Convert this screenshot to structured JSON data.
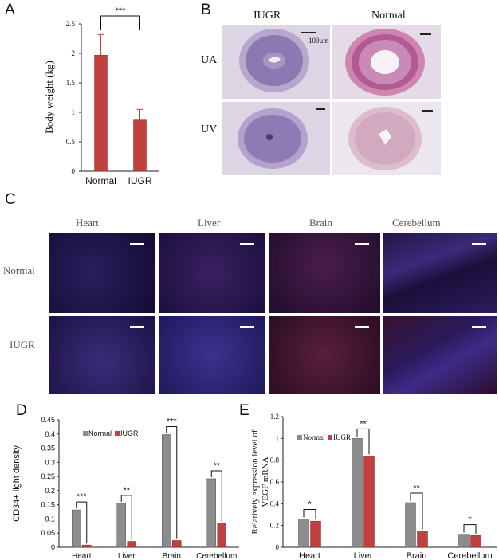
{
  "panel_labels": {
    "a": "A",
    "b": "B",
    "c": "C",
    "d": "D",
    "e": "E"
  },
  "panel_b": {
    "columns": [
      "IUGR",
      "Normal"
    ],
    "rows": [
      "UA",
      "UV"
    ],
    "scale_label": "100μm"
  },
  "panel_c": {
    "columns": [
      "Heart",
      "Liver",
      "Brain",
      "Cerebellum"
    ],
    "rows": [
      "Normal",
      "IUGR"
    ]
  },
  "colors": {
    "normal": "#8c8c8c",
    "iugr": "#c0413f",
    "fluo_bg": "#1a0f3a"
  },
  "chart_data": [
    {
      "type": "bar",
      "panel": "A",
      "categories": [
        "Normal",
        "IUGR"
      ],
      "values": [
        1.97,
        0.87
      ],
      "errors": [
        0.35,
        0.18
      ],
      "ylabel": "Body weight (kg)",
      "ylim": [
        0,
        2.5
      ],
      "yticks": [
        "0",
        "0.5",
        "1",
        "1.5",
        "2",
        "2.5"
      ],
      "significance": "***"
    },
    {
      "type": "bar",
      "panel": "D",
      "categories": [
        "Heart",
        "Liver",
        "Brain",
        "Cerebellum"
      ],
      "series": [
        {
          "name": "Normal",
          "values": [
            0.132,
            0.155,
            0.398,
            0.242
          ]
        },
        {
          "name": "IUGR",
          "values": [
            0.008,
            0.021,
            0.024,
            0.085
          ]
        }
      ],
      "ylabel": "CD34+ light density",
      "ylim": [
        0,
        0.45
      ],
      "yticks": [
        "0",
        "0.05",
        "0.1",
        "0.15",
        "0.2",
        "0.25",
        "0.3",
        "0.35",
        "0.4",
        "0.45"
      ],
      "significance": [
        "***",
        "**",
        "***",
        "**"
      ],
      "legend": "top-left"
    },
    {
      "type": "bar",
      "panel": "E",
      "categories": [
        "Heart",
        "Liver",
        "Brain",
        "Cerebellum"
      ],
      "series": [
        {
          "name": "Normal",
          "values": [
            0.26,
            1.0,
            0.41,
            0.12
          ]
        },
        {
          "name": "IUGR",
          "values": [
            0.24,
            0.84,
            0.15,
            0.11
          ]
        }
      ],
      "ylabel": "Relatively expression level of VEGF mRNA",
      "ylim": [
        0,
        1.2
      ],
      "yticks": [
        "0",
        "0.2",
        "0.4",
        "0.6",
        "0.8",
        "1",
        "1.2"
      ],
      "significance": [
        "*",
        "**",
        "**",
        "*"
      ],
      "legend": "top-left"
    }
  ]
}
